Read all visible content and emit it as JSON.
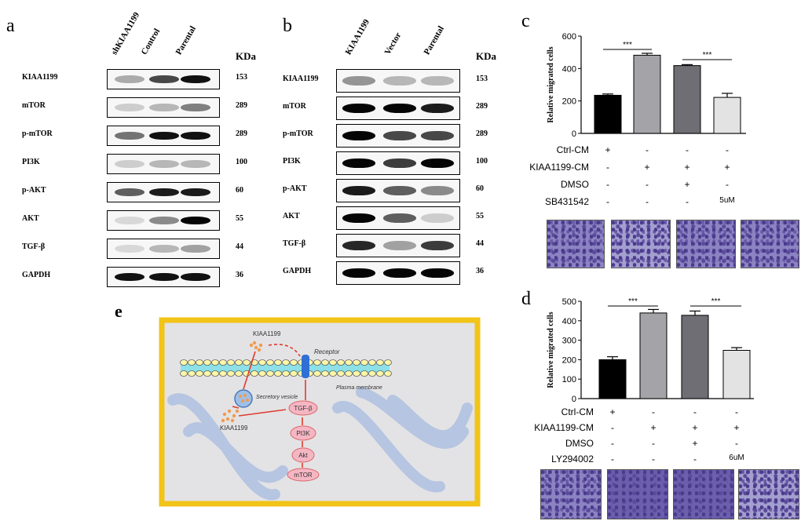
{
  "panel_a": {
    "label": "a",
    "lanes": [
      "shKIAA1199",
      "Control",
      "Parental"
    ],
    "kda_header": "KDa",
    "rows": [
      {
        "protein": "KIAA1199",
        "mw": "153",
        "intensity": [
          0.25,
          0.7,
          0.95
        ]
      },
      {
        "protein": "mTOR",
        "mw": "289",
        "intensity": [
          0.1,
          0.2,
          0.45
        ]
      },
      {
        "protein": "p-mTOR",
        "mw": "289",
        "intensity": [
          0.5,
          0.95,
          0.95
        ]
      },
      {
        "protein": "PI3K",
        "mw": "100",
        "intensity": [
          0.1,
          0.2,
          0.2
        ]
      },
      {
        "protein": "p-AKT",
        "mw": "60",
        "intensity": [
          0.6,
          0.9,
          0.9
        ]
      },
      {
        "protein": "AKT",
        "mw": "55",
        "intensity": [
          0.05,
          0.4,
          1.0
        ]
      },
      {
        "protein": "TGF-β",
        "mw": "44",
        "intensity": [
          0.05,
          0.2,
          0.3
        ]
      },
      {
        "protein": "GAPDH",
        "mw": "36",
        "intensity": [
          0.95,
          0.95,
          0.95
        ]
      }
    ]
  },
  "panel_b": {
    "label": "b",
    "lanes": [
      "KIAA1199",
      "Vector",
      "Parental"
    ],
    "kda_header": "KDa",
    "rows": [
      {
        "protein": "KIAA1199",
        "mw": "153",
        "intensity": [
          0.35,
          0.2,
          0.2
        ]
      },
      {
        "protein": "mTOR",
        "mw": "289",
        "intensity": [
          1.0,
          1.0,
          0.9
        ]
      },
      {
        "protein": "p-mTOR",
        "mw": "289",
        "intensity": [
          1.0,
          0.7,
          0.7
        ]
      },
      {
        "protein": "PI3K",
        "mw": "100",
        "intensity": [
          1.0,
          0.75,
          1.0
        ]
      },
      {
        "protein": "p-AKT",
        "mw": "60",
        "intensity": [
          0.9,
          0.6,
          0.4
        ]
      },
      {
        "protein": "AKT",
        "mw": "55",
        "intensity": [
          1.0,
          0.6,
          0.1
        ]
      },
      {
        "protein": "TGF-β",
        "mw": "44",
        "intensity": [
          0.85,
          0.3,
          0.75
        ]
      },
      {
        "protein": "GAPDH",
        "mw": "36",
        "intensity": [
          1.0,
          1.0,
          1.0
        ]
      }
    ]
  },
  "panel_c": {
    "label": "c",
    "significance": [
      "***",
      "***"
    ],
    "treatments": [
      {
        "name": "Ctrl-CM",
        "signs": [
          "+",
          "-",
          "-",
          "-"
        ]
      },
      {
        "name": "KIAA1199-CM",
        "signs": [
          "-",
          "+",
          "+",
          "+"
        ]
      },
      {
        "name": "DMSO",
        "signs": [
          "-",
          "-",
          "+",
          "-"
        ]
      },
      {
        "name": "SB431542",
        "signs": [
          "-",
          "-",
          "-",
          "5uM"
        ]
      }
    ]
  },
  "panel_d": {
    "label": "d",
    "significance": [
      "***",
      "***"
    ],
    "treatments": [
      {
        "name": "Ctrl-CM",
        "signs": [
          "+",
          "-",
          "-",
          "-"
        ]
      },
      {
        "name": "KIAA1199-CM",
        "signs": [
          "-",
          "+",
          "+",
          "+"
        ]
      },
      {
        "name": "DMSO",
        "signs": [
          "-",
          "-",
          "+",
          "-"
        ]
      },
      {
        "name": "LY294002",
        "signs": [
          "-",
          "-",
          "-",
          "6uM"
        ]
      }
    ]
  },
  "panel_e": {
    "label": "e",
    "labels": {
      "top_protein": "KIAA1199",
      "receptor": "Receptor",
      "membrane": "Plasma membrane",
      "vesicle": "Secretory vesicle",
      "cyto_protein": "KIAA1199"
    },
    "pathway": [
      "TGF-β",
      "PI3K",
      "Akt",
      "mTOR"
    ]
  },
  "chart_data": [
    {
      "type": "bar",
      "categories": [
        "Ctrl-CM",
        "KIAA1199-CM",
        "KIAA1199-CM + DMSO",
        "KIAA1199-CM + SB431542"
      ],
      "values": [
        235,
        482,
        418,
        222
      ],
      "errors": [
        8,
        12,
        6,
        25
      ],
      "colors": [
        "#000000",
        "#a3a3a8",
        "#6e6e74",
        "#e3e3e3"
      ],
      "ylabel": "Relative migrated cells",
      "ylim": [
        0,
        600
      ],
      "yticks": [
        0,
        200,
        400,
        600
      ],
      "grid": false
    },
    {
      "type": "bar",
      "categories": [
        "Ctrl-CM",
        "KIAA1199-CM",
        "KIAA1199-CM + DMSO",
        "KIAA1199-CM + LY294002"
      ],
      "values": [
        200,
        440,
        428,
        248
      ],
      "errors": [
        15,
        18,
        22,
        14
      ],
      "colors": [
        "#000000",
        "#a3a3a8",
        "#6e6e74",
        "#e3e3e3"
      ],
      "ylabel": "Relative migrated cells",
      "ylim": [
        0,
        500
      ],
      "yticks": [
        0,
        100,
        200,
        300,
        400,
        500
      ],
      "grid": false
    }
  ]
}
